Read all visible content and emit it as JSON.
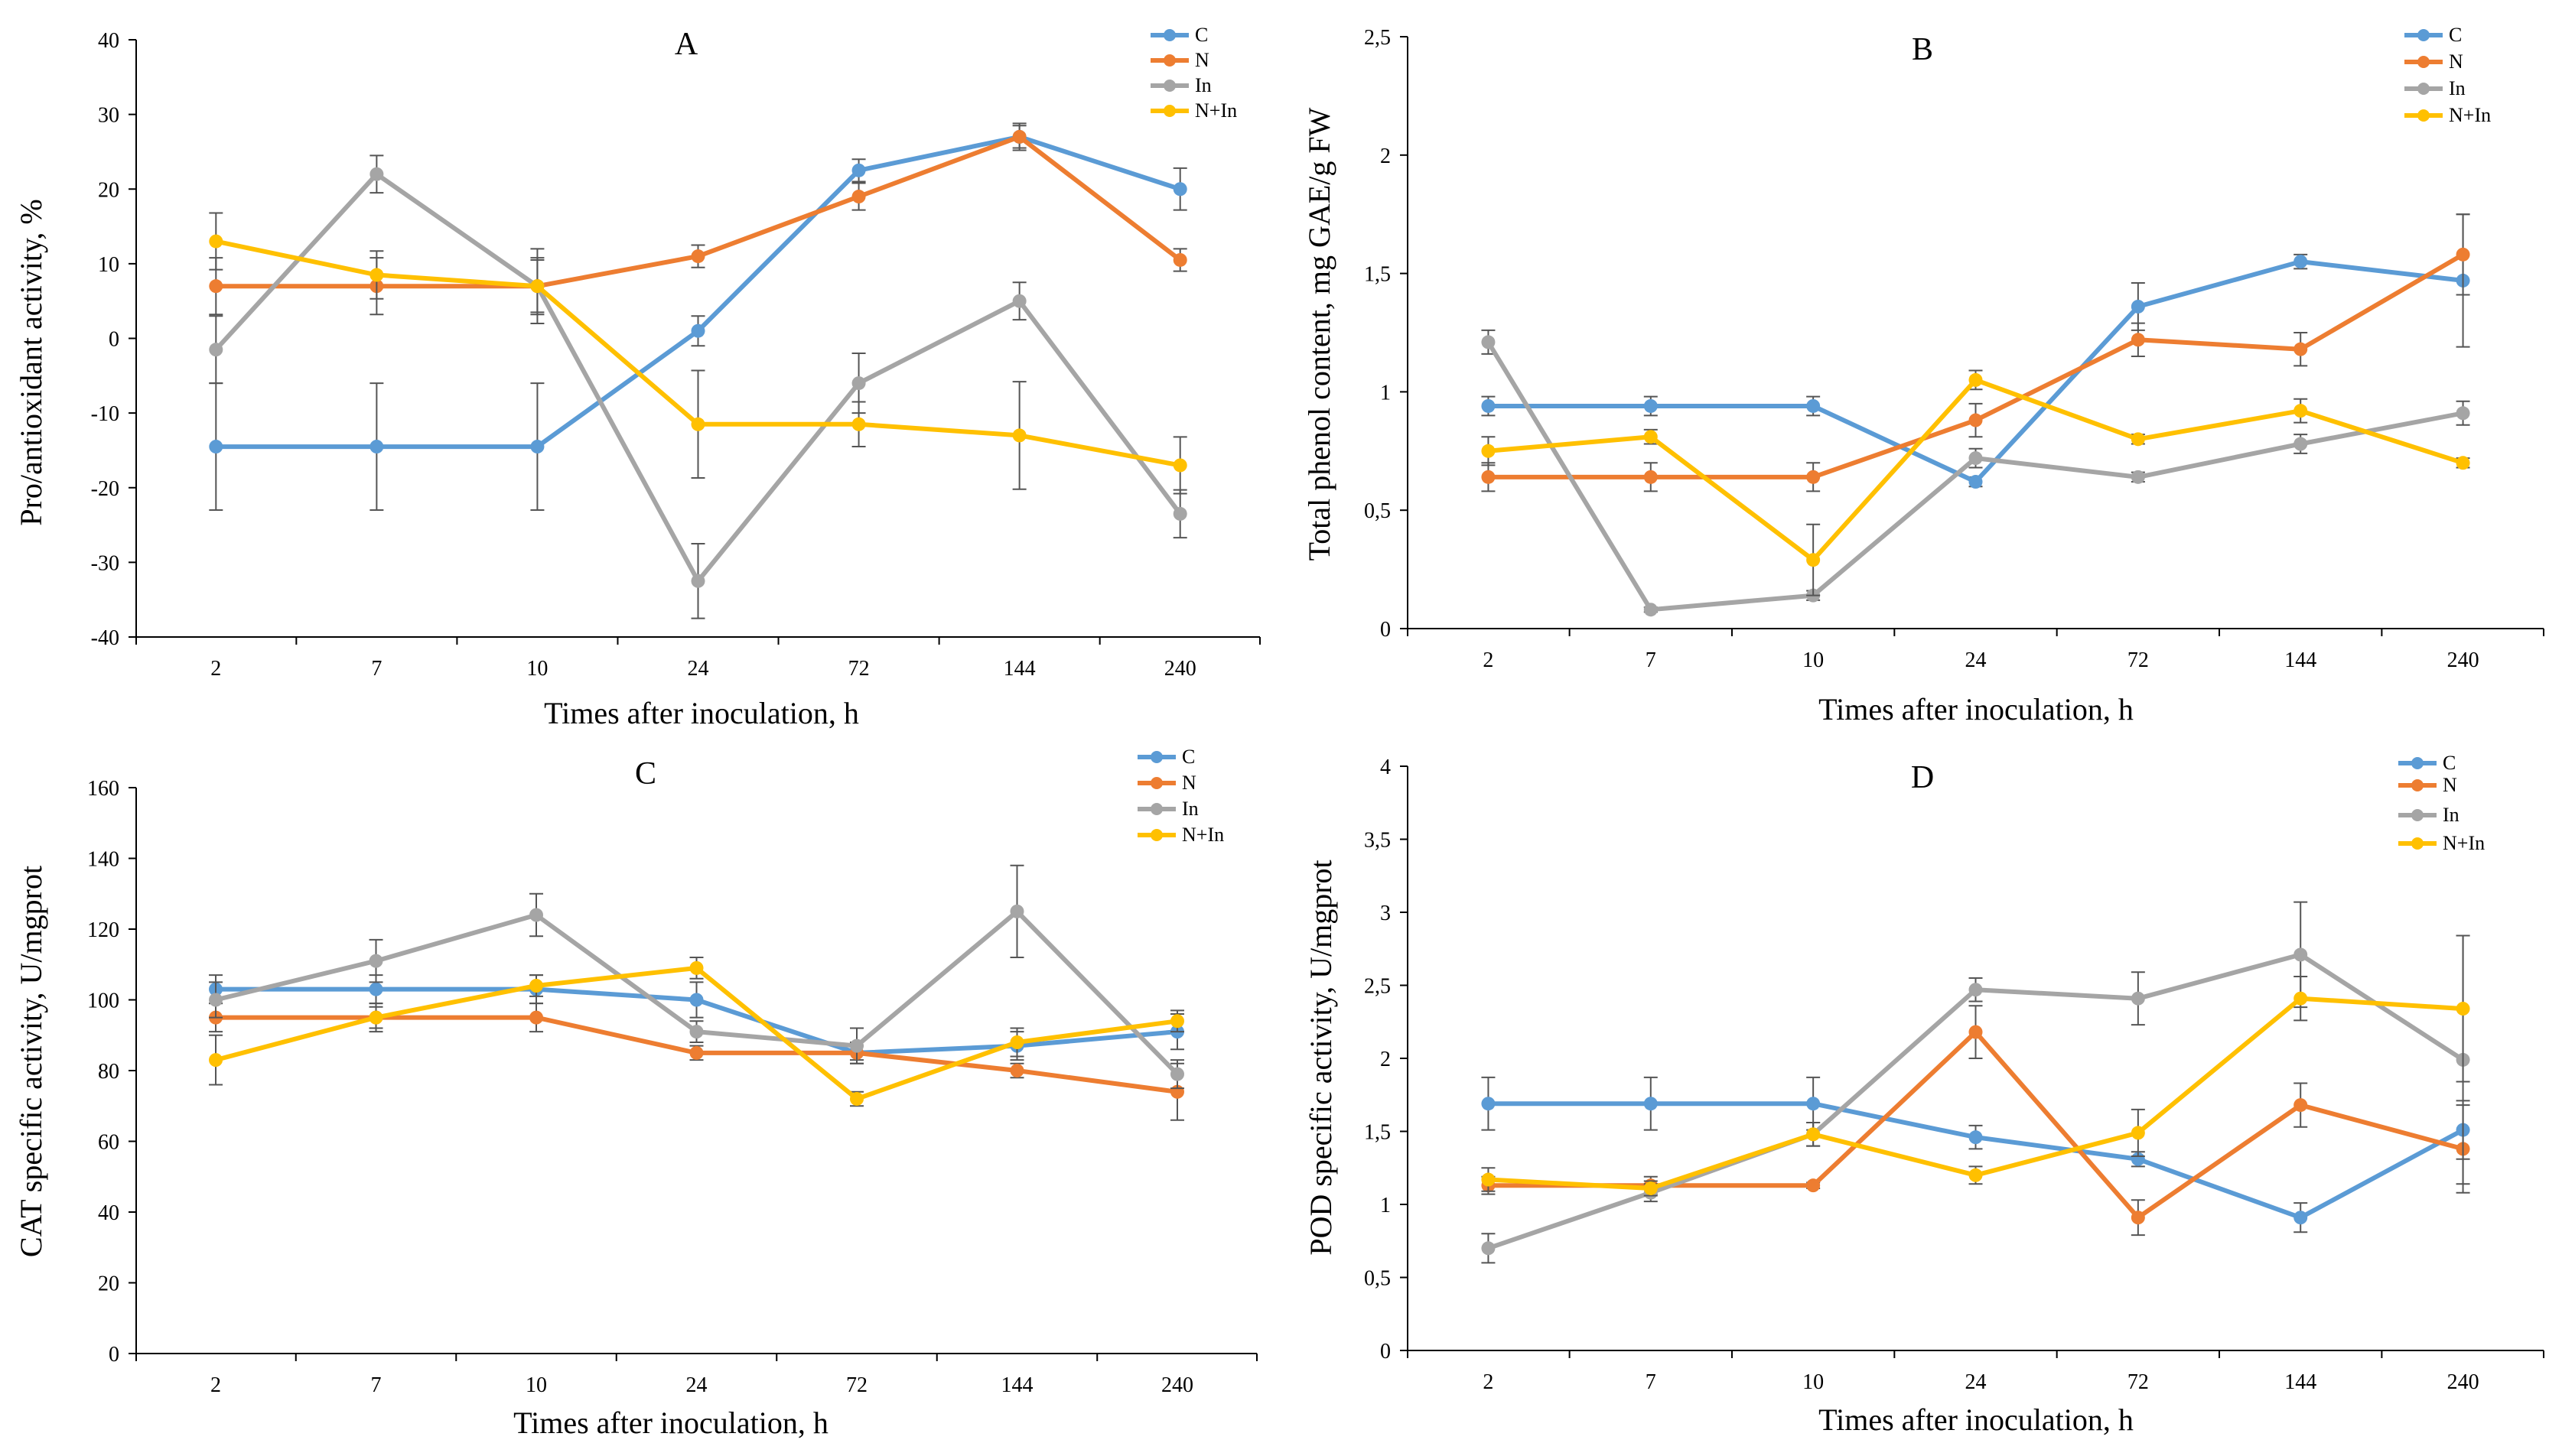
{
  "series_names": [
    "C",
    "N",
    "In",
    "N+In"
  ],
  "series_colors": {
    "C": "#5b9bd5",
    "N": "#ed7d31",
    "In": "#a5a5a5",
    "N+In": "#ffc000"
  },
  "chart_data": [
    {
      "id": "A",
      "type": "line",
      "title": "A",
      "xlabel": "Times after inoculation,  h",
      "ylabel": "Pro/antioxidant activity, %",
      "categories": [
        "2",
        "7",
        "10",
        "24",
        "72",
        "144",
        "240"
      ],
      "ylim": [
        -40,
        40
      ],
      "yticks": [
        -40,
        -30,
        -20,
        -10,
        0,
        10,
        20,
        30,
        40
      ],
      "ytick_labels": [
        "-40",
        "-30",
        "-20",
        "-10",
        "0",
        "10",
        "20",
        "30",
        "40"
      ],
      "legend_position": "top-right",
      "series": [
        {
          "name": "C",
          "values": [
            -14.5,
            -14.5,
            -14.5,
            1.0,
            22.5,
            27.0,
            20.0
          ],
          "errors": [
            8.5,
            8.5,
            8.5,
            2.0,
            1.5,
            1.8,
            2.8
          ]
        },
        {
          "name": "N",
          "values": [
            7.0,
            7.0,
            7.0,
            11.0,
            19.0,
            27.0,
            10.5
          ],
          "errors": [
            3.8,
            3.8,
            3.8,
            1.5,
            1.8,
            1.5,
            1.5
          ]
        },
        {
          "name": "In",
          "values": [
            -1.5,
            22.0,
            7.0,
            -32.5,
            -6.0,
            5.0,
            -23.5
          ],
          "errors": [
            4.5,
            2.5,
            5.0,
            5.0,
            4.0,
            2.5,
            3.2
          ]
        },
        {
          "name": "N+In",
          "values": [
            13.0,
            8.5,
            7.0,
            -11.5,
            -11.5,
            -13.0,
            -17.0
          ],
          "errors": [
            3.8,
            3.2,
            3.5,
            7.2,
            3.0,
            7.2,
            3.8
          ]
        }
      ]
    },
    {
      "id": "B",
      "type": "line",
      "title": "B",
      "xlabel": "Times after inoculation,  h",
      "ylabel": "Total phenol content, mg GAE/g FW",
      "categories": [
        "2",
        "7",
        "10",
        "24",
        "72",
        "144",
        "240"
      ],
      "ylim": [
        0,
        2.5
      ],
      "yticks": [
        0,
        0.5,
        1,
        1.5,
        2,
        2.5
      ],
      "ytick_labels": [
        "0",
        "0,5",
        "1",
        "1,5",
        "2",
        "2,5"
      ],
      "legend_position": "top-right",
      "series": [
        {
          "name": "C",
          "values": [
            0.94,
            0.94,
            0.94,
            0.62,
            1.36,
            1.55,
            1.47
          ],
          "errors": [
            0.04,
            0.04,
            0.04,
            0.02,
            0.1,
            0.03,
            0.28
          ]
        },
        {
          "name": "N",
          "values": [
            0.64,
            0.64,
            0.64,
            0.88,
            1.22,
            1.18,
            1.58
          ],
          "errors": [
            0.06,
            0.06,
            0.06,
            0.07,
            0.07,
            0.07,
            0.17
          ]
        },
        {
          "name": "In",
          "values": [
            1.21,
            0.08,
            0.14,
            0.72,
            0.64,
            0.78,
            0.91
          ],
          "errors": [
            0.05,
            0.01,
            0.02,
            0.04,
            0.02,
            0.04,
            0.05
          ]
        },
        {
          "name": "N+In",
          "values": [
            0.75,
            0.81,
            0.29,
            1.05,
            0.8,
            0.92,
            0.7
          ],
          "errors": [
            0.06,
            0.03,
            0.15,
            0.04,
            0.02,
            0.05,
            0.02
          ]
        }
      ]
    },
    {
      "id": "C",
      "type": "line",
      "title": "C",
      "xlabel": "Times after inoculation,  h",
      "ylabel": "CAT specific activity, U/mgprot",
      "categories": [
        "2",
        "7",
        "10",
        "24",
        "72",
        "144",
        "240"
      ],
      "ylim": [
        0,
        160
      ],
      "yticks": [
        0,
        20,
        40,
        60,
        80,
        100,
        120,
        140,
        160
      ],
      "ytick_labels": [
        "0",
        "20",
        "40",
        "60",
        "80",
        "100",
        "120",
        "140",
        "160"
      ],
      "legend_position": "top-right",
      "series": [
        {
          "name": "C",
          "values": [
            103,
            103,
            103,
            100,
            85,
            87,
            91
          ],
          "errors": [
            4,
            4,
            4,
            5,
            3,
            4,
            5
          ]
        },
        {
          "name": "N",
          "values": [
            95,
            95,
            95,
            85,
            85,
            80,
            74
          ],
          "errors": [
            4,
            4,
            4,
            2,
            2,
            2,
            8
          ]
        },
        {
          "name": "In",
          "values": [
            100,
            111,
            124,
            91,
            87,
            125,
            79
          ],
          "errors": [
            5,
            6,
            6,
            3,
            5,
            13,
            4
          ]
        },
        {
          "name": "N+In",
          "values": [
            83,
            95,
            104,
            109,
            72,
            88,
            94
          ],
          "errors": [
            7,
            3,
            3,
            3,
            2,
            4,
            3
          ]
        }
      ]
    },
    {
      "id": "D",
      "type": "line",
      "title": "D",
      "xlabel": "Times after inoculation,  h",
      "ylabel": "POD specific activity, U/mgprot",
      "categories": [
        "2",
        "7",
        "10",
        "24",
        "72",
        "144",
        "240"
      ],
      "ylim": [
        0,
        4
      ],
      "yticks": [
        0,
        0.5,
        1,
        1.5,
        2,
        2.5,
        3,
        3.5,
        4
      ],
      "ytick_labels": [
        "0",
        "0,5",
        "1",
        "1,5",
        "2",
        "2,5",
        "3",
        "3,5",
        "4"
      ],
      "legend_position": "top-right",
      "series": [
        {
          "name": "C",
          "values": [
            1.69,
            1.69,
            1.69,
            1.46,
            1.31,
            0.91,
            1.51
          ],
          "errors": [
            0.18,
            0.18,
            0.18,
            0.08,
            0.05,
            0.1,
            0.2
          ]
        },
        {
          "name": "N",
          "values": [
            1.13,
            1.13,
            1.13,
            2.18,
            0.91,
            1.68,
            1.38
          ],
          "errors": [
            0.06,
            0.06,
            0.02,
            0.18,
            0.12,
            0.15,
            0.3
          ]
        },
        {
          "name": "In",
          "values": [
            0.7,
            1.08,
            1.48,
            2.47,
            2.41,
            2.71,
            1.99
          ],
          "errors": [
            0.1,
            0.06,
            0.08,
            0.08,
            0.18,
            0.36,
            0.85
          ]
        },
        {
          "name": "N+In",
          "values": [
            1.17,
            1.11,
            1.48,
            1.2,
            1.49,
            2.41,
            2.34
          ],
          "errors": [
            0.08,
            0.05,
            0.08,
            0.06,
            0.16,
            0.15,
            0.5
          ]
        }
      ]
    }
  ]
}
